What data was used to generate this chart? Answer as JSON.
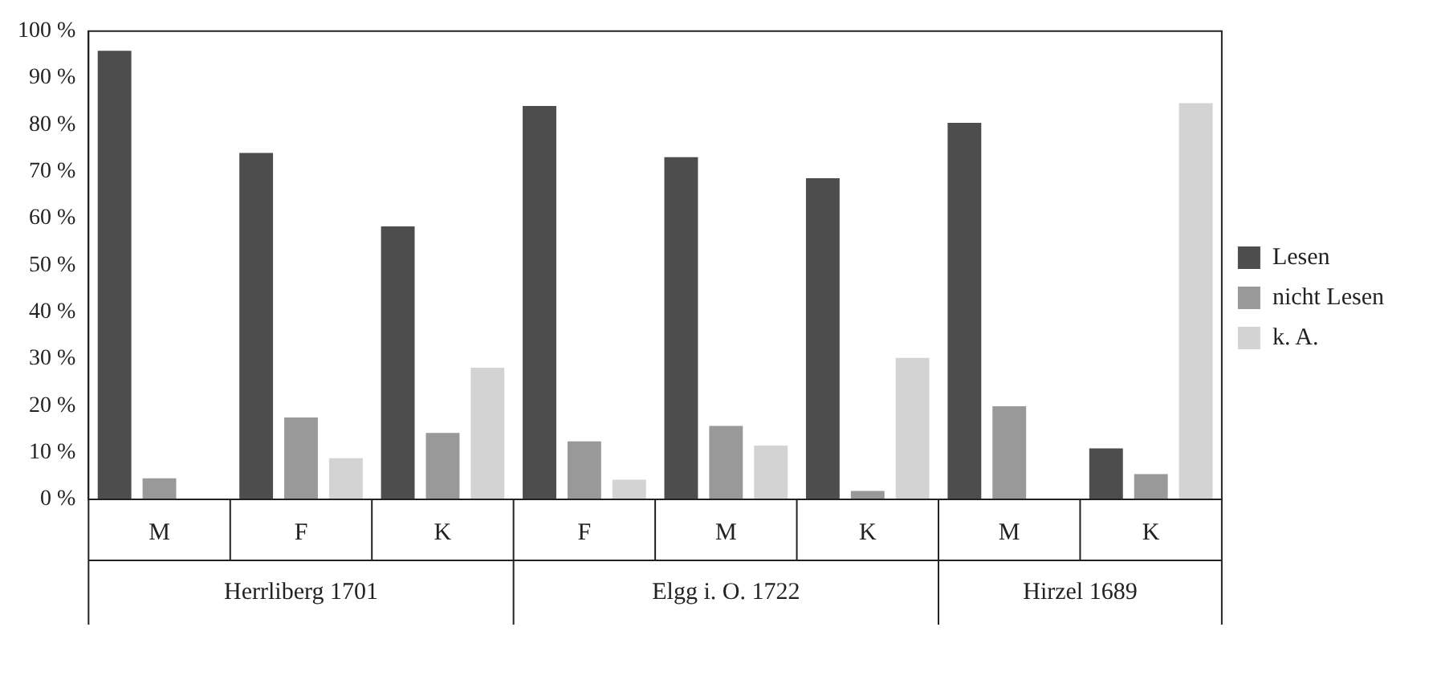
{
  "chart_data": {
    "type": "bar",
    "categories": [
      "M",
      "F",
      "K",
      "F",
      "M",
      "K",
      "M",
      "K"
    ],
    "series": [
      {
        "name": "Lesen",
        "color": "#4d4d4d",
        "values": [
          95.8,
          74,
          58.3,
          84,
          73.1,
          68.6,
          80.4,
          10.9
        ]
      },
      {
        "name": "nicht Lesen",
        "color": "#999999",
        "values": [
          4.5,
          17.5,
          14.2,
          12.4,
          15.7,
          1.8,
          19.9,
          5.4
        ]
      },
      {
        "name": "k. A.",
        "color": "#d3d3d3",
        "values": [
          0,
          8.8,
          28.1,
          4.2,
          11.5,
          30.2,
          0,
          84.6
        ]
      }
    ],
    "annotations": [
      "Herrliberg 1701",
      "Elgg i. O. 1722",
      "Hirzel 1689"
    ],
    "ylim": [
      0,
      100
    ],
    "yticks": [
      {
        "value": 0,
        "label": "0 %"
      },
      {
        "value": 10,
        "label": "10 %"
      },
      {
        "value": 20,
        "label": "20 %"
      },
      {
        "value": 30,
        "label": "30 %"
      },
      {
        "value": 40,
        "label": "40 %"
      },
      {
        "value": 50,
        "label": "50 %"
      },
      {
        "value": 60,
        "label": "60 %"
      },
      {
        "value": 70,
        "label": "70 %"
      },
      {
        "value": 80,
        "label": "80 %"
      },
      {
        "value": 90,
        "label": "90 %"
      },
      {
        "value": 100,
        "label": "100 %"
      }
    ],
    "grid": false,
    "legend": "right"
  }
}
